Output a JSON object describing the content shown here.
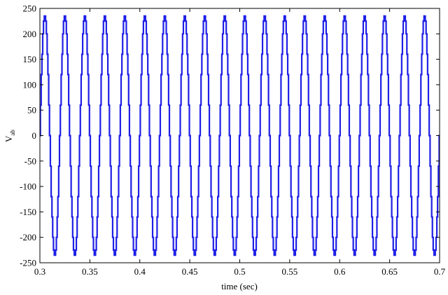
{
  "chart_data": {
    "type": "line",
    "xlabel": "time (sec)",
    "ylabel_main": "V",
    "ylabel_sub": "ab",
    "xlim": [
      0.3,
      0.7
    ],
    "ylim": [
      -250,
      250
    ],
    "x_ticks": [
      0.3,
      0.35,
      0.4,
      0.45,
      0.5,
      0.55,
      0.6,
      0.65,
      0.7
    ],
    "x_tick_labels": [
      "0.3",
      "0.35",
      "0.4",
      "0.45",
      "0.5",
      "0.55",
      "0.6",
      "0.65",
      "0.7"
    ],
    "y_ticks": [
      250,
      200,
      150,
      100,
      50,
      0,
      -50,
      -100,
      -150,
      -200,
      -250
    ],
    "y_tick_labels": [
      "250",
      "200",
      "150",
      "100",
      "50",
      "0",
      "-50",
      "-100",
      "-150",
      "-200",
      "-250"
    ],
    "grid": false,
    "legend": "none",
    "series": [
      {
        "color": "#1f1fe6",
        "waveform": "stepped sine",
        "frequency_hz": 50,
        "amplitude": 235,
        "phase_deg": 0,
        "step_levels": [
          0,
          60,
          120,
          160,
          200,
          225,
          235
        ]
      }
    ]
  }
}
